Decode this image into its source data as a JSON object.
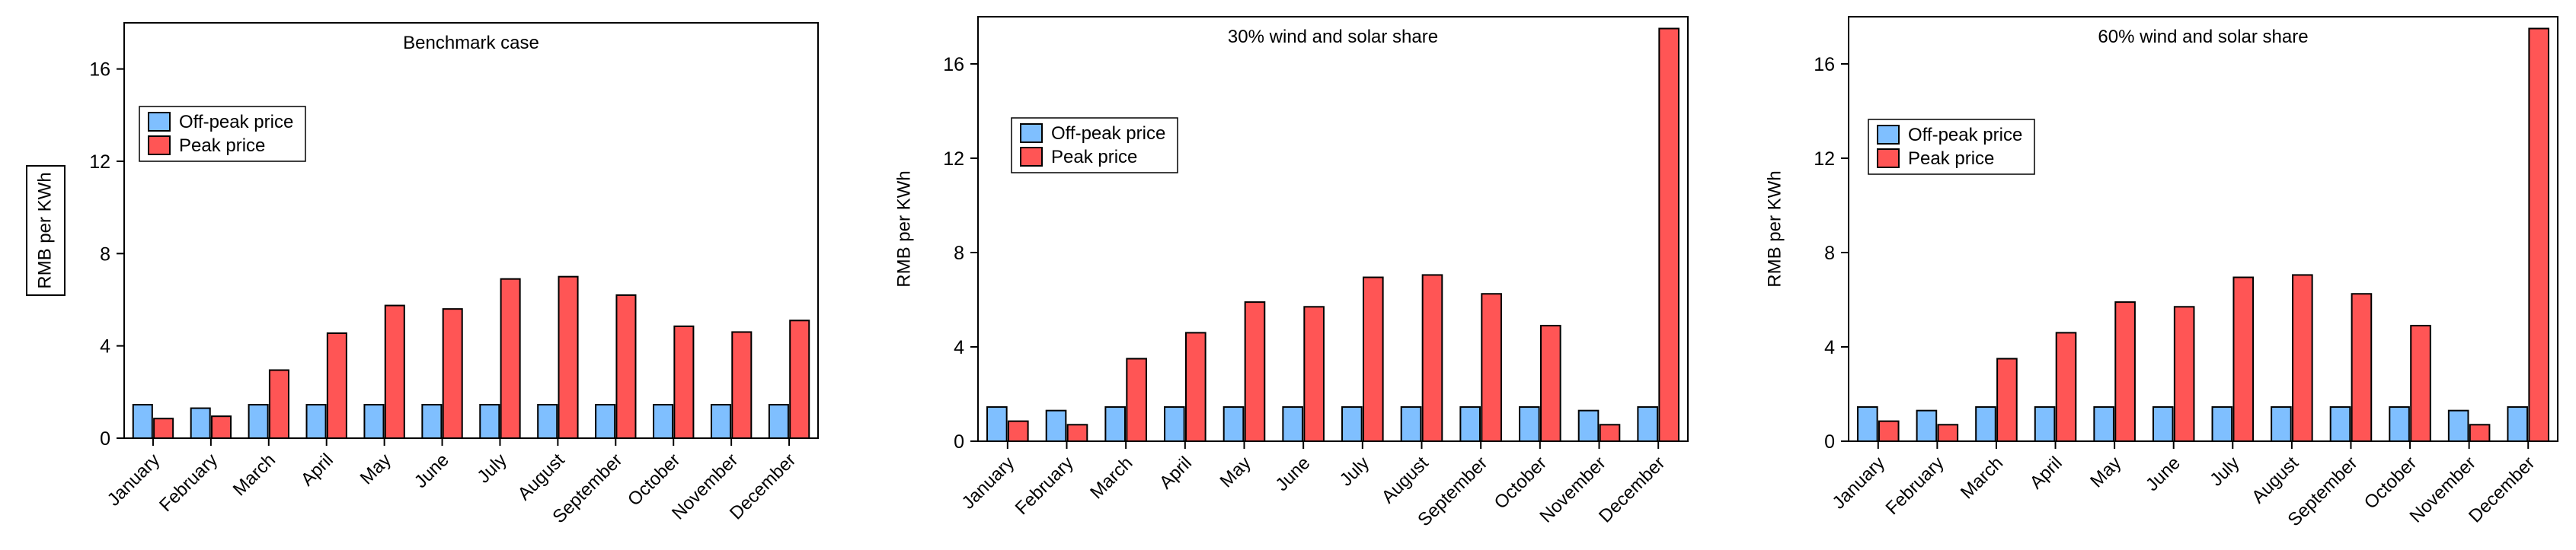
{
  "chart_data": [
    {
      "type": "bar",
      "title": "Benchmark case",
      "ylabel": "RMB per KWh",
      "ylabel_boxed": true,
      "xlabel": "",
      "ylim": [
        0,
        18
      ],
      "yticks": [
        0,
        4,
        8,
        12,
        16
      ],
      "categories": [
        "January",
        "February",
        "March",
        "April",
        "May",
        "June",
        "July",
        "August",
        "September",
        "October",
        "November",
        "December"
      ],
      "series": [
        {
          "name": "Off-peak price",
          "values": [
            1.45,
            1.3,
            1.45,
            1.45,
            1.45,
            1.45,
            1.45,
            1.45,
            1.45,
            1.45,
            1.45,
            1.45
          ]
        },
        {
          "name": "Peak price",
          "values": [
            0.85,
            0.95,
            2.95,
            4.55,
            5.75,
            5.6,
            6.9,
            7.0,
            6.2,
            4.85,
            4.6,
            5.1
          ]
        }
      ],
      "colors": [
        "#7fbfff",
        "#ff5555"
      ],
      "legend": "top-left"
    },
    {
      "type": "bar",
      "title": "30% wind and solar share",
      "ylabel": "RMB per KWh",
      "ylabel_boxed": false,
      "xlabel": "",
      "ylim": [
        0,
        18
      ],
      "yticks": [
        0,
        4,
        8,
        12,
        16
      ],
      "categories": [
        "January",
        "February",
        "March",
        "April",
        "May",
        "June",
        "July",
        "August",
        "September",
        "October",
        "November",
        "December"
      ],
      "series": [
        {
          "name": "Off-peak price",
          "values": [
            1.45,
            1.3,
            1.45,
            1.45,
            1.45,
            1.45,
            1.45,
            1.45,
            1.45,
            1.45,
            1.3,
            1.45
          ]
        },
        {
          "name": "Peak price",
          "values": [
            0.85,
            0.7,
            3.5,
            4.6,
            5.9,
            5.7,
            6.95,
            7.05,
            6.25,
            4.9,
            0.7,
            17.5
          ]
        }
      ],
      "colors": [
        "#7fbfff",
        "#ff5555"
      ],
      "legend": "top-left"
    },
    {
      "type": "bar",
      "title": "60% wind and solar share",
      "ylabel": "RMB per KWh",
      "ylabel_boxed": false,
      "xlabel": "",
      "ylim": [
        0,
        18
      ],
      "yticks": [
        0,
        4,
        8,
        12,
        16
      ],
      "categories": [
        "January",
        "February",
        "March",
        "April",
        "May",
        "June",
        "July",
        "August",
        "September",
        "October",
        "November",
        "December"
      ],
      "series": [
        {
          "name": "Off-peak price",
          "values": [
            1.45,
            1.3,
            1.45,
            1.45,
            1.45,
            1.45,
            1.45,
            1.45,
            1.45,
            1.45,
            1.3,
            1.45
          ]
        },
        {
          "name": "Peak price",
          "values": [
            0.85,
            0.7,
            3.5,
            4.6,
            5.9,
            5.7,
            6.95,
            7.05,
            6.25,
            4.9,
            0.7,
            17.5
          ]
        }
      ],
      "colors": [
        "#7fbfff",
        "#ff5555"
      ],
      "legend": "top-left"
    }
  ]
}
